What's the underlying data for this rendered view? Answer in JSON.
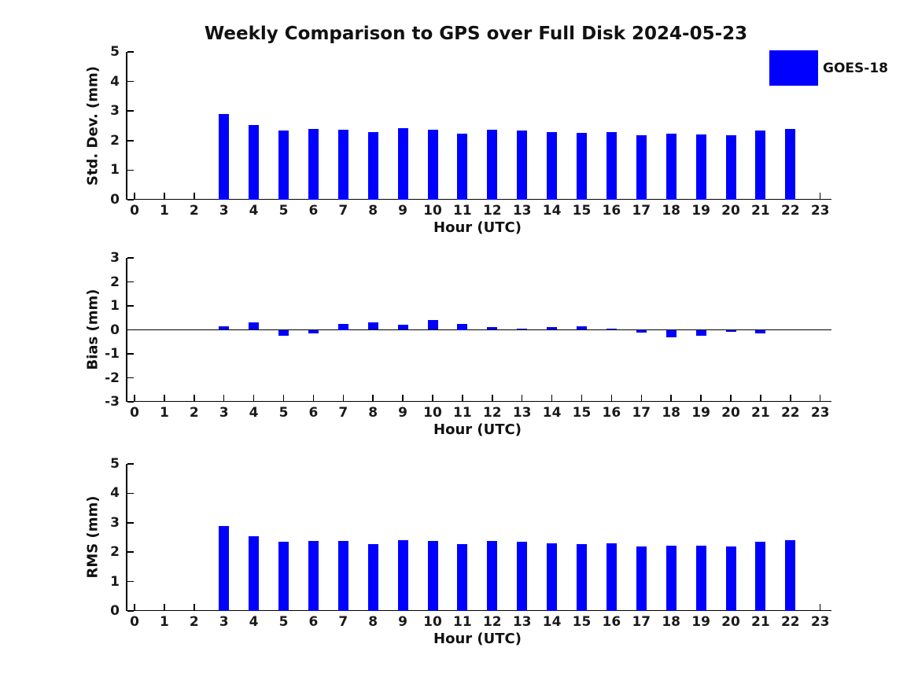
{
  "title": "Weekly Comparison to GPS over Full Disk 2024-05-23",
  "legend": {
    "label": "GOES-18",
    "color": "#0000FF",
    "position": "top-right"
  },
  "colors": {
    "bar": "#0000FF",
    "axis": "#000000",
    "text": "#1a1a1a"
  },
  "chart_data": [
    {
      "type": "bar",
      "series": "GOES-18",
      "ylabel": "Std. Dev. (mm)",
      "xlabel": "Hour (UTC)",
      "categories": [
        0,
        1,
        2,
        3,
        4,
        5,
        6,
        7,
        8,
        9,
        10,
        11,
        12,
        13,
        14,
        15,
        16,
        17,
        18,
        19,
        20,
        21,
        22,
        23
      ],
      "values": [
        null,
        null,
        null,
        2.9,
        2.52,
        2.34,
        2.4,
        2.38,
        2.28,
        2.42,
        2.38,
        2.24,
        2.37,
        2.34,
        2.28,
        2.25,
        2.28,
        2.17,
        2.23,
        2.2,
        2.17,
        2.35,
        2.4,
        null
      ],
      "ylim": [
        0,
        5
      ],
      "yticks": [
        0,
        1,
        2,
        3,
        4,
        5
      ],
      "grid": false,
      "legend_position": "top-right"
    },
    {
      "type": "bar",
      "series": "GOES-18",
      "ylabel": "Bias (mm)",
      "xlabel": "Hour (UTC)",
      "categories": [
        0,
        1,
        2,
        3,
        4,
        5,
        6,
        7,
        8,
        9,
        10,
        11,
        12,
        13,
        14,
        15,
        16,
        17,
        18,
        19,
        20,
        21,
        22,
        23
      ],
      "values": [
        null,
        null,
        null,
        0.15,
        0.3,
        -0.25,
        -0.15,
        0.25,
        0.3,
        0.2,
        0.4,
        0.25,
        0.1,
        0.05,
        0.12,
        0.15,
        0.05,
        -0.1,
        -0.3,
        -0.25,
        -0.08,
        -0.15,
        0.0,
        null
      ],
      "ylim": [
        -3,
        3
      ],
      "yticks": [
        -3,
        -2,
        -1,
        0,
        1,
        2,
        3
      ],
      "zero_line": true,
      "grid": false
    },
    {
      "type": "bar",
      "series": "GOES-18",
      "ylabel": "RMS (mm)",
      "xlabel": "Hour (UTC)",
      "categories": [
        0,
        1,
        2,
        3,
        4,
        5,
        6,
        7,
        8,
        9,
        10,
        11,
        12,
        13,
        14,
        15,
        16,
        17,
        18,
        19,
        20,
        21,
        22,
        23
      ],
      "values": [
        null,
        null,
        null,
        2.9,
        2.53,
        2.36,
        2.39,
        2.39,
        2.27,
        2.41,
        2.39,
        2.27,
        2.37,
        2.36,
        2.29,
        2.27,
        2.29,
        2.18,
        2.23,
        2.22,
        2.2,
        2.36,
        2.4,
        null
      ],
      "ylim": [
        0,
        5
      ],
      "yticks": [
        0,
        1,
        2,
        3,
        4,
        5
      ],
      "grid": false
    }
  ]
}
